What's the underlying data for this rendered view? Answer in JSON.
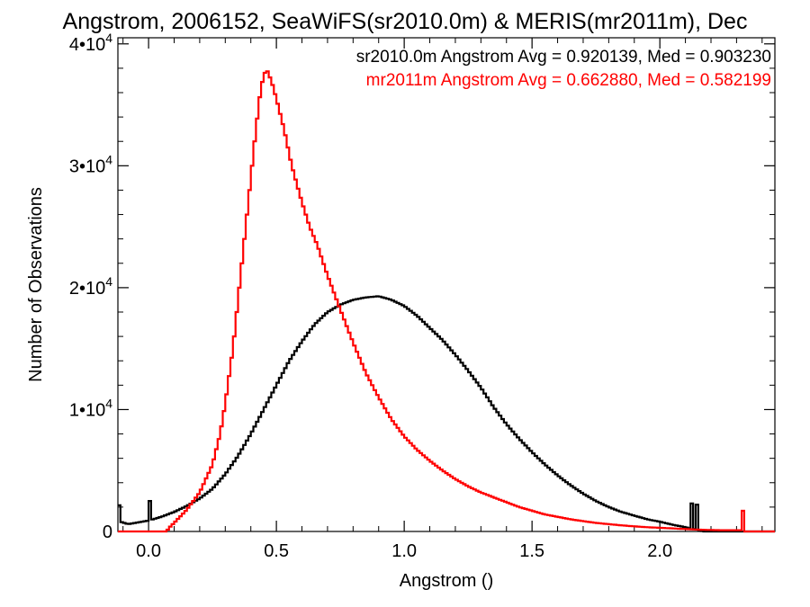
{
  "chart_data": {
    "type": "line",
    "title": "Angstrom, 2006152, SeaWiFS(sr2010.0m) & MERIS(mr2011m), Dec",
    "xlabel": "Angstrom ()",
    "ylabel": "Number of Observations",
    "xlim": [
      -0.12,
      2.45
    ],
    "ylim": [
      0,
      40500
    ],
    "x_ticks": [
      {
        "value": 0.0,
        "label": "0.0"
      },
      {
        "value": 0.5,
        "label": "0.5"
      },
      {
        "value": 1.0,
        "label": "1.0"
      },
      {
        "value": 1.5,
        "label": "1.5"
      },
      {
        "value": 2.0,
        "label": "2.0"
      }
    ],
    "y_ticks": [
      {
        "value": 0,
        "label": "0",
        "sup": ""
      },
      {
        "value": 10000,
        "label": "1•10",
        "sup": "4"
      },
      {
        "value": 20000,
        "label": "2•10",
        "sup": "4"
      },
      {
        "value": 30000,
        "label": "3•10",
        "sup": "4"
      },
      {
        "value": 40000,
        "label": "4•10",
        "sup": "4"
      }
    ],
    "legend": [
      {
        "text": "sr2010.0m Angstrom Avg = 0.920139, Med = 0.903230",
        "color": "#000000"
      },
      {
        "text": "mr2011m Angstrom Avg = 0.662880, Med = 0.582199",
        "color": "#ff0000"
      }
    ],
    "legend_position": "top-right",
    "series": [
      {
        "color": "#000000",
        "points": [
          [
            -0.12,
            3500
          ],
          [
            -0.11,
            800
          ],
          [
            -0.08,
            600
          ],
          [
            -0.04,
            750
          ],
          [
            0.0,
            900
          ],
          [
            0.05,
            1200
          ],
          [
            0.1,
            1600
          ],
          [
            0.15,
            2100
          ],
          [
            0.2,
            2700
          ],
          [
            0.25,
            3500
          ],
          [
            0.3,
            4700
          ],
          [
            0.35,
            6200
          ],
          [
            0.4,
            8000
          ],
          [
            0.45,
            10000
          ],
          [
            0.5,
            12000
          ],
          [
            0.55,
            14000
          ],
          [
            0.6,
            15600
          ],
          [
            0.65,
            17000
          ],
          [
            0.7,
            18000
          ],
          [
            0.75,
            18600
          ],
          [
            0.8,
            19000
          ],
          [
            0.85,
            19200
          ],
          [
            0.9,
            19300
          ],
          [
            0.95,
            19000
          ],
          [
            1.0,
            18500
          ],
          [
            1.05,
            17700
          ],
          [
            1.1,
            16700
          ],
          [
            1.15,
            15700
          ],
          [
            1.2,
            14500
          ],
          [
            1.25,
            13200
          ],
          [
            1.3,
            11800
          ],
          [
            1.35,
            10200
          ],
          [
            1.4,
            8800
          ],
          [
            1.45,
            7600
          ],
          [
            1.5,
            6500
          ],
          [
            1.55,
            5500
          ],
          [
            1.6,
            4600
          ],
          [
            1.65,
            3800
          ],
          [
            1.7,
            3100
          ],
          [
            1.75,
            2500
          ],
          [
            1.8,
            2000
          ],
          [
            1.85,
            1600
          ],
          [
            1.9,
            1300
          ],
          [
            1.95,
            1000
          ],
          [
            2.0,
            800
          ],
          [
            2.05,
            550
          ],
          [
            2.1,
            350
          ],
          [
            2.12,
            250
          ],
          [
            2.15,
            150
          ],
          [
            2.17,
            0
          ],
          [
            2.45,
            0
          ]
        ],
        "spikes": [
          {
            "x": 0.0,
            "y": 2500
          },
          {
            "x": 2.12,
            "y": 2300
          },
          {
            "x": 2.14,
            "y": 2200
          }
        ]
      },
      {
        "color": "#ff0000",
        "points": [
          [
            -0.12,
            0
          ],
          [
            0.07,
            0
          ],
          [
            0.08,
            300
          ],
          [
            0.1,
            700
          ],
          [
            0.15,
            1800
          ],
          [
            0.2,
            3200
          ],
          [
            0.25,
            5500
          ],
          [
            0.28,
            8000
          ],
          [
            0.3,
            10500
          ],
          [
            0.33,
            15000
          ],
          [
            0.36,
            21000
          ],
          [
            0.39,
            27000
          ],
          [
            0.42,
            33000
          ],
          [
            0.44,
            36500
          ],
          [
            0.46,
            38000
          ],
          [
            0.48,
            37000
          ],
          [
            0.5,
            35500
          ],
          [
            0.53,
            33000
          ],
          [
            0.56,
            30000
          ],
          [
            0.6,
            27000
          ],
          [
            0.63,
            25000
          ],
          [
            0.66,
            23500
          ],
          [
            0.7,
            21000
          ],
          [
            0.75,
            18200
          ],
          [
            0.8,
            15500
          ],
          [
            0.85,
            13000
          ],
          [
            0.9,
            11000
          ],
          [
            0.95,
            9200
          ],
          [
            1.0,
            7800
          ],
          [
            1.05,
            6700
          ],
          [
            1.1,
            5800
          ],
          [
            1.15,
            5000
          ],
          [
            1.2,
            4300
          ],
          [
            1.25,
            3700
          ],
          [
            1.3,
            3200
          ],
          [
            1.35,
            2800
          ],
          [
            1.4,
            2400
          ],
          [
            1.45,
            2000
          ],
          [
            1.5,
            1700
          ],
          [
            1.55,
            1400
          ],
          [
            1.6,
            1200
          ],
          [
            1.65,
            1000
          ],
          [
            1.7,
            850
          ],
          [
            1.75,
            700
          ],
          [
            1.8,
            600
          ],
          [
            1.85,
            500
          ],
          [
            1.9,
            420
          ],
          [
            1.95,
            350
          ],
          [
            2.0,
            300
          ],
          [
            2.05,
            250
          ],
          [
            2.1,
            200
          ],
          [
            2.15,
            150
          ],
          [
            2.2,
            120
          ],
          [
            2.25,
            100
          ],
          [
            2.3,
            100
          ],
          [
            2.32,
            100
          ],
          [
            2.33,
            0
          ],
          [
            2.45,
            0
          ]
        ],
        "spikes": [
          {
            "x": 2.325,
            "y": 1700
          }
        ]
      }
    ]
  }
}
